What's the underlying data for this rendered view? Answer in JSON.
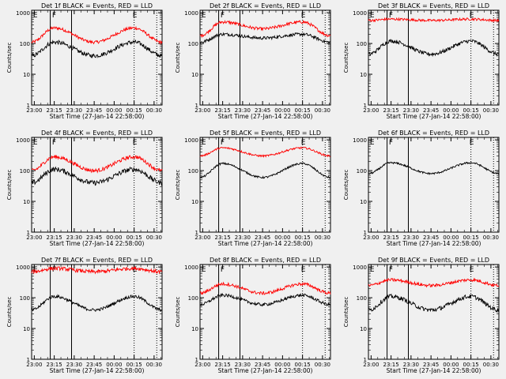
{
  "xlabel": "Start Time (27-Jan-14 22:58:00)",
  "ylabel": "Counts/sec",
  "xticks": [
    "23:00",
    "23:15",
    "23:30",
    "23:45",
    "00:00",
    "00:15",
    "00:30"
  ],
  "yticks": [
    "1",
    "10",
    "100",
    "1000"
  ],
  "markers": [
    "E",
    "F",
    "E"
  ],
  "colors": {
    "background": "#f0f0f0",
    "events": "#000000",
    "lld": "#ff0000"
  },
  "chart_data": [
    {
      "type": "line",
      "title": "Det 1f BLACK = Events, RED = LLD",
      "black_level": [
        40,
        110,
        40,
        110,
        40
      ],
      "red_level": [
        110,
        320,
        110,
        320,
        110
      ],
      "black_noise": 0.07,
      "red_noise": 0.05,
      "red_visible": true,
      "sf_lines": [
        0,
        1
      ]
    },
    {
      "type": "line",
      "title": "Det 2f BLACK = Events, RED = LLD",
      "black_level": [
        110,
        200,
        150,
        200,
        110
      ],
      "red_level": [
        180,
        500,
        300,
        500,
        180
      ],
      "black_noise": 0.05,
      "red_noise": 0.05,
      "red_visible": true,
      "sf_lines": [
        0,
        1
      ]
    },
    {
      "type": "line",
      "title": "Det 3f BLACK = Events, RED = LLD",
      "black_level": [
        45,
        120,
        45,
        120,
        45
      ],
      "red_level": [
        560,
        620,
        560,
        620,
        560
      ],
      "black_noise": 0.06,
      "red_noise": 0.04,
      "red_visible": true,
      "sf_lines": [
        0,
        1
      ]
    },
    {
      "type": "line",
      "title": "Det 4f BLACK = Events, RED = LLD",
      "black_level": [
        40,
        110,
        40,
        110,
        40
      ],
      "red_level": [
        100,
        280,
        100,
        280,
        100
      ],
      "black_noise": 0.08,
      "red_noise": 0.06,
      "red_visible": true,
      "sf_lines": [
        0,
        1
      ]
    },
    {
      "type": "line",
      "title": "Det 5f BLACK = Events, RED = LLD",
      "black_level": [
        60,
        170,
        60,
        170,
        60
      ],
      "red_level": [
        300,
        550,
        300,
        550,
        300
      ],
      "black_noise": 0.03,
      "red_noise": 0.03,
      "red_visible": true,
      "sf_lines": [
        0,
        1
      ]
    },
    {
      "type": "line",
      "title": "Det 6f BLACK = Events, RED = LLD",
      "black_level": [
        80,
        180,
        80,
        180,
        80
      ],
      "red_level": [
        80,
        180,
        80,
        180,
        80
      ],
      "black_noise": 0.03,
      "red_noise": 0.03,
      "red_visible": false,
      "sf_lines": [
        0,
        1
      ]
    },
    {
      "type": "line",
      "title": "Det 7f BLACK = Events, RED = LLD",
      "black_level": [
        40,
        110,
        40,
        110,
        40
      ],
      "red_level": [
        700,
        900,
        700,
        900,
        700
      ],
      "black_noise": 0.05,
      "red_noise": 0.06,
      "red_visible": true,
      "sf_lines": [
        0,
        1
      ]
    },
    {
      "type": "line",
      "title": "Det 8f BLACK = Events, RED = LLD",
      "black_level": [
        60,
        120,
        60,
        120,
        60
      ],
      "red_level": [
        140,
        280,
        140,
        280,
        140
      ],
      "black_noise": 0.05,
      "red_noise": 0.05,
      "red_visible": true,
      "sf_lines": [
        0,
        1
      ]
    },
    {
      "type": "line",
      "title": "Det 9f BLACK = Events, RED = LLD",
      "black_level": [
        40,
        110,
        40,
        110,
        40
      ],
      "red_level": [
        250,
        380,
        250,
        380,
        250
      ],
      "black_noise": 0.07,
      "red_noise": 0.05,
      "red_visible": true,
      "sf_lines": [
        0,
        1
      ]
    }
  ]
}
